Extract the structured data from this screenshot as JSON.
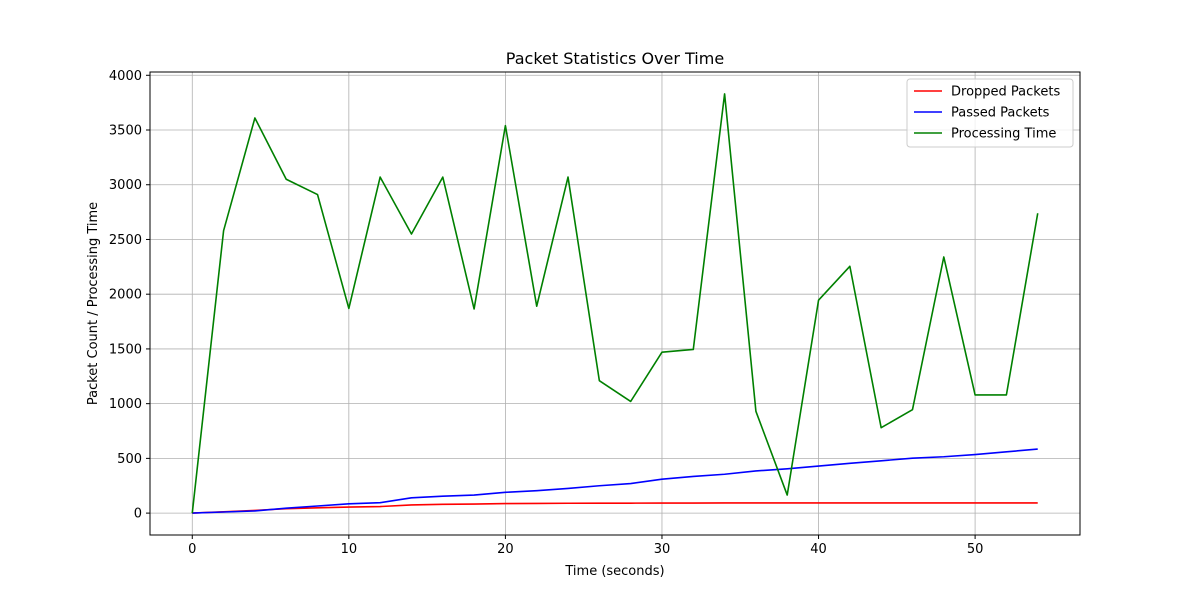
{
  "chart_data": {
    "type": "line",
    "title": "Packet Statistics Over Time",
    "xlabel": "Time (seconds)",
    "ylabel": "Packet Count / Processing Time",
    "xlim": [
      -2.7,
      56.7
    ],
    "ylim": [
      -200,
      4030
    ],
    "xticks": [
      0,
      10,
      20,
      30,
      40,
      50
    ],
    "yticks": [
      0,
      500,
      1000,
      1500,
      2000,
      2500,
      3000,
      3500,
      4000
    ],
    "grid": true,
    "legend_position": "top-right",
    "x": [
      0,
      2,
      4,
      6,
      8,
      10,
      12,
      14,
      16,
      18,
      20,
      22,
      24,
      26,
      28,
      30,
      32,
      34,
      36,
      38,
      40,
      42,
      44,
      46,
      48,
      50,
      52,
      54
    ],
    "series": [
      {
        "name": "Dropped Packets",
        "color": "#ff0000",
        "values": [
          0,
          12,
          25,
          40,
          48,
          55,
          60,
          75,
          80,
          83,
          87,
          88,
          90,
          91,
          91,
          92,
          92,
          93,
          93,
          93,
          93,
          93,
          93,
          93,
          93,
          93,
          93,
          93
        ]
      },
      {
        "name": "Passed Packets",
        "color": "#0000ff",
        "values": [
          0,
          10,
          20,
          45,
          65,
          85,
          95,
          140,
          155,
          165,
          190,
          205,
          225,
          250,
          270,
          310,
          335,
          355,
          385,
          405,
          430,
          455,
          478,
          502,
          515,
          535,
          560,
          585
        ]
      },
      {
        "name": "Processing Time",
        "color": "#008000",
        "values": [
          0,
          2580,
          3610,
          3050,
          2910,
          1870,
          3070,
          2550,
          3070,
          1865,
          3540,
          1890,
          3070,
          1210,
          1020,
          1470,
          1495,
          3830,
          930,
          165,
          1945,
          2255,
          780,
          945,
          2340,
          1080,
          1080,
          2740
        ]
      }
    ]
  }
}
